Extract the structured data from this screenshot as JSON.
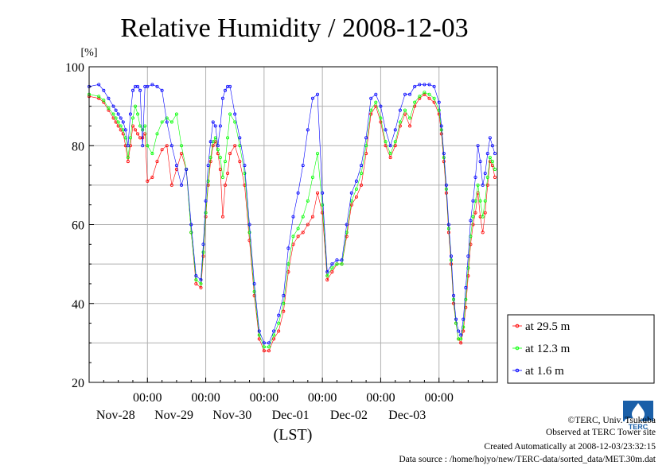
{
  "chart_data": {
    "type": "line",
    "title": "Relative Humidity / 2008-12-03",
    "ylabel": "[%]",
    "xlabel": "(LST)",
    "ylim": [
      20,
      100
    ],
    "yticks": [
      20,
      40,
      60,
      80,
      100
    ],
    "xticks": [
      {
        "time": "00:00",
        "date": "Nov-28",
        "hours": 0
      },
      {
        "time": "00:00",
        "date": "Nov-29",
        "hours": 24
      },
      {
        "time": "00:00",
        "date": "Nov-30",
        "hours": 48
      },
      {
        "time": "00:00",
        "date": "Dec-01",
        "hours": 72
      },
      {
        "time": "00:00",
        "date": "Dec-02",
        "hours": 96
      },
      {
        "time": "00:00",
        "date": "Dec-03",
        "hours": 120
      }
    ],
    "xlim_hours": [
      -24,
      144
    ],
    "grid": true,
    "legend_position": "bottom-right outside",
    "series": [
      {
        "name": "at 29.5 m",
        "color": "#ff0000",
        "hours": [
          -24,
          -20,
          -18,
          -16,
          -14,
          -13,
          -12,
          -11,
          -10,
          -9,
          -8,
          -7,
          -6,
          -5,
          -4,
          -3,
          -2,
          -1,
          0,
          2,
          4,
          6,
          8,
          10,
          12,
          14,
          16,
          18,
          20,
          22,
          23,
          24,
          25,
          26,
          27,
          28,
          29,
          30,
          31,
          32,
          33,
          34,
          36,
          38,
          40,
          42,
          44,
          46,
          48,
          50,
          52,
          54,
          56,
          58,
          60,
          62,
          64,
          66,
          68,
          70,
          72,
          74,
          76,
          78,
          80,
          82,
          84,
          86,
          88,
          90,
          92,
          94,
          96,
          98,
          100,
          102,
          104,
          106,
          108,
          110,
          112,
          114,
          116,
          118,
          120,
          121,
          122,
          123,
          124,
          125,
          126,
          127,
          128,
          129,
          130,
          131,
          132,
          133,
          134,
          135,
          136,
          137,
          138,
          139,
          140,
          141,
          142,
          143
        ],
        "values": [
          92.5,
          92,
          91,
          89,
          87,
          86,
          85,
          84,
          83,
          80,
          76,
          80,
          85,
          84,
          83,
          82,
          82,
          83,
          71,
          72,
          76,
          79,
          80,
          70,
          74,
          78,
          74,
          58,
          45,
          44,
          52,
          62,
          70,
          76,
          80,
          81,
          78,
          74,
          62,
          70,
          73,
          78,
          80,
          76,
          70,
          56,
          42,
          31,
          28,
          28,
          31,
          33,
          38,
          48,
          55,
          57,
          58,
          60,
          62,
          68,
          63,
          46,
          48,
          50,
          50,
          57,
          65,
          67,
          70,
          78,
          88,
          90,
          86,
          80,
          77,
          80,
          85,
          88,
          85,
          90,
          92,
          93,
          92,
          91,
          88,
          83,
          76,
          68,
          58,
          50,
          40,
          35,
          31,
          30,
          33,
          39,
          47,
          55,
          60,
          63,
          68,
          62,
          58,
          63,
          70,
          76,
          75,
          72
        ]
      },
      {
        "name": "at 12.3 m",
        "color": "#00ff00",
        "hours": [
          -24,
          -20,
          -18,
          -16,
          -14,
          -13,
          -12,
          -11,
          -10,
          -9,
          -8,
          -7,
          -6,
          -5,
          -4,
          -3,
          -2,
          -1,
          0,
          2,
          4,
          6,
          8,
          10,
          12,
          14,
          16,
          18,
          20,
          22,
          23,
          24,
          25,
          26,
          27,
          28,
          29,
          30,
          31,
          32,
          33,
          34,
          36,
          38,
          40,
          42,
          44,
          46,
          48,
          50,
          52,
          54,
          56,
          58,
          60,
          62,
          64,
          66,
          68,
          70,
          72,
          74,
          76,
          78,
          80,
          82,
          84,
          86,
          88,
          90,
          92,
          94,
          96,
          98,
          100,
          102,
          104,
          106,
          108,
          110,
          112,
          114,
          116,
          118,
          120,
          121,
          122,
          123,
          124,
          125,
          126,
          127,
          128,
          129,
          130,
          131,
          132,
          133,
          134,
          135,
          136,
          137,
          138,
          139,
          140,
          141,
          142,
          143
        ],
        "values": [
          93,
          92.5,
          91.5,
          89.5,
          88,
          87,
          86,
          85,
          84,
          82,
          77,
          82,
          87,
          90,
          88,
          85,
          84,
          85,
          80,
          78,
          83,
          86,
          87,
          86,
          88,
          80,
          74,
          58,
          46,
          45,
          53,
          63,
          71,
          77,
          81,
          82,
          79,
          77,
          72,
          76,
          82,
          88,
          86,
          80,
          73,
          58,
          43,
          32,
          29,
          29,
          32,
          35,
          40,
          50,
          57,
          59,
          62,
          66,
          72,
          78,
          65,
          47,
          49,
          50,
          50,
          58,
          66,
          69,
          73,
          80,
          89,
          91,
          87,
          81,
          78,
          81,
          86,
          89,
          87,
          91,
          92.5,
          93.5,
          93,
          92,
          89,
          84,
          77,
          69,
          59,
          51,
          41,
          35,
          31,
          31,
          34,
          41,
          49,
          57,
          62,
          66,
          70,
          66,
          62,
          66,
          72,
          77,
          76,
          74
        ]
      },
      {
        "name": "at 1.6 m",
        "color": "#0000ff",
        "hours": [
          -24,
          -20,
          -18,
          -16,
          -14,
          -13,
          -12,
          -11,
          -10,
          -9,
          -8,
          -7,
          -6,
          -5,
          -4,
          -3,
          -2,
          -1,
          0,
          2,
          4,
          6,
          8,
          10,
          12,
          14,
          16,
          18,
          20,
          22,
          23,
          24,
          25,
          26,
          27,
          28,
          29,
          30,
          31,
          32,
          33,
          34,
          36,
          38,
          40,
          42,
          44,
          46,
          48,
          50,
          52,
          54,
          56,
          58,
          60,
          62,
          64,
          66,
          68,
          70,
          72,
          74,
          76,
          78,
          80,
          82,
          84,
          86,
          88,
          90,
          92,
          94,
          96,
          98,
          100,
          102,
          104,
          106,
          108,
          110,
          112,
          114,
          116,
          118,
          120,
          121,
          122,
          123,
          124,
          125,
          126,
          127,
          128,
          129,
          130,
          131,
          132,
          133,
          134,
          135,
          136,
          137,
          138,
          139,
          140,
          141,
          142,
          143
        ],
        "values": [
          95,
          95.5,
          94,
          92,
          90,
          89,
          88,
          87,
          86,
          84,
          80,
          88,
          94,
          95,
          95,
          94,
          80,
          95,
          95,
          95.5,
          95,
          94,
          86,
          80,
          75,
          70,
          74,
          60,
          47,
          46,
          55,
          66,
          75,
          81,
          86,
          85,
          80,
          85,
          92,
          94,
          95,
          95,
          88,
          82,
          75,
          60,
          45,
          33,
          30,
          30,
          33,
          37,
          42,
          54,
          62,
          68,
          75,
          84,
          92,
          93,
          68,
          48,
          50,
          51,
          51,
          60,
          68,
          71,
          75,
          82,
          92,
          93,
          90,
          84,
          80,
          84,
          89,
          93,
          93,
          95,
          95.5,
          95.5,
          95.5,
          95,
          91,
          85,
          78,
          70,
          60,
          52,
          42,
          36,
          33,
          32,
          36,
          44,
          52,
          61,
          66,
          72,
          80,
          76,
          70,
          73,
          78,
          82,
          80,
          78
        ]
      }
    ]
  },
  "footer": {
    "copyright": "©TERC, Univ. Tsukuba",
    "observed": "Observed at TERC Tower site",
    "created": "Created Automatically at 2008-12-03/23:32:15",
    "source": "Data source : /home/hojyo/new/TERC-data/sorted_data/MET.30m.dat"
  }
}
